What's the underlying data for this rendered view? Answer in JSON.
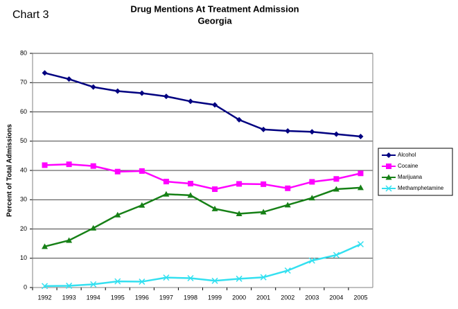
{
  "chart_data": {
    "type": "line",
    "label": "Chart 3",
    "title": "Drug Mentions At Treatment Admission",
    "subtitle": "Georgia",
    "y_label": "Percent of Total Admissions",
    "categories": [
      "1992",
      "1993",
      "1994",
      "1995",
      "1996",
      "1997",
      "1998",
      "1999",
      "2000",
      "2001",
      "2002",
      "2003",
      "2004",
      "2005"
    ],
    "series": [
      {
        "name": "Alcohol",
        "color": "#000080",
        "marker": "diamond",
        "values": [
          73.3,
          71.2,
          68.5,
          67.1,
          66.4,
          65.3,
          63.6,
          62.4,
          57.3,
          54.0,
          53.5,
          53.2,
          52.4,
          51.6
        ]
      },
      {
        "name": "Cocaine",
        "color": "#ff00ff",
        "marker": "square",
        "values": [
          41.8,
          42.1,
          41.5,
          39.6,
          39.8,
          36.2,
          35.5,
          33.6,
          35.4,
          35.3,
          33.9,
          36.1,
          37.1,
          39.0
        ]
      },
      {
        "name": "Marijuana",
        "color": "#168016",
        "marker": "triangle",
        "values": [
          14.0,
          16.1,
          20.3,
          24.8,
          28.1,
          31.9,
          31.5,
          26.9,
          25.2,
          25.8,
          28.2,
          30.6,
          33.6,
          34.1
        ]
      },
      {
        "name": "Methamphetamine",
        "color": "#33e0f0",
        "marker": "cross",
        "values": [
          0.5,
          0.6,
          1.1,
          2.1,
          2.0,
          3.4,
          3.2,
          2.3,
          3.0,
          3.5,
          5.8,
          9.2,
          11.1,
          14.8
        ]
      }
    ],
    "ylim": [
      0,
      80
    ],
    "yticks": [
      0,
      10,
      20,
      30,
      40,
      50,
      60,
      70,
      80
    ],
    "grid": true,
    "legend": "right"
  }
}
